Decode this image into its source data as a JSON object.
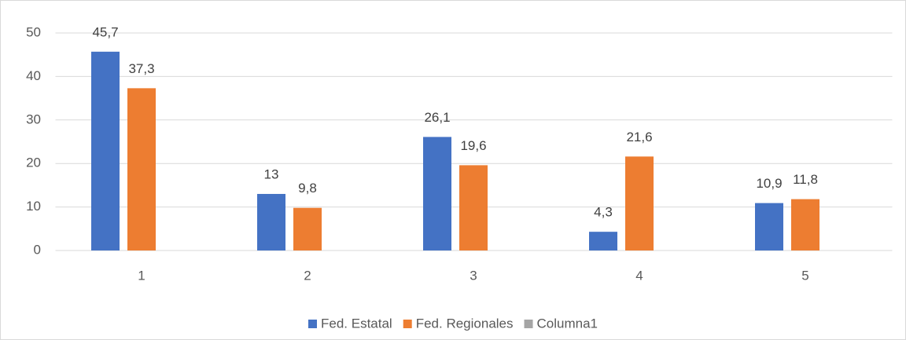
{
  "chart_data": {
    "type": "bar",
    "categories": [
      "1",
      "2",
      "3",
      "4",
      "5"
    ],
    "series": [
      {
        "name": "Fed. Estatal",
        "color": "#4472c4",
        "values": [
          45.7,
          13,
          26.1,
          4.3,
          10.9
        ],
        "value_labels": [
          "45,7",
          "13",
          "26,1",
          "4,3",
          "10,9"
        ]
      },
      {
        "name": "Fed. Regionales",
        "color": "#ed7d31",
        "values": [
          37.3,
          9.8,
          19.6,
          21.6,
          11.8
        ],
        "value_labels": [
          "37,3",
          "9,8",
          "19,6",
          "21,6",
          "11,8"
        ]
      },
      {
        "name": "Columna1",
        "color": "#a5a5a5",
        "values": [
          null,
          null,
          null,
          null,
          null
        ]
      }
    ],
    "ylim": [
      0,
      50
    ],
    "yticks": [
      0,
      10,
      20,
      30,
      40,
      50
    ],
    "grid": true,
    "legend": "bottom"
  }
}
